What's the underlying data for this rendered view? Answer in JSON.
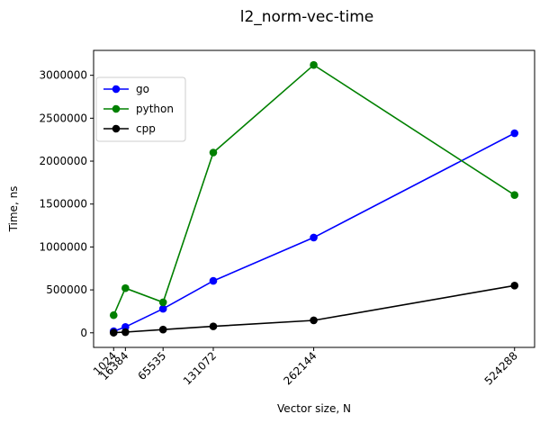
{
  "chart_data": {
    "type": "line",
    "title": "l2_norm-vec-time",
    "xlabel": "Vector size, N",
    "ylabel": "Time, ns",
    "x": [
      1024,
      16384,
      65535,
      131072,
      262144,
      524288
    ],
    "x_tick_labels": [
      "1024",
      "16384",
      "65535",
      "131072",
      "262144",
      "524288"
    ],
    "y_ticks": [
      0,
      500000,
      1000000,
      1500000,
      2000000,
      2500000,
      3000000
    ],
    "y_tick_labels": [
      "0",
      "500000",
      "1000000",
      "1500000",
      "2000000",
      "2500000",
      "3000000"
    ],
    "xlim": [
      -25138,
      550450
    ],
    "ylim": [
      -170000,
      3290000
    ],
    "grid": false,
    "legend_position": "upper-left",
    "series": [
      {
        "name": "go",
        "color": "#0000ff",
        "values": [
          18000,
          68000,
          280000,
          605000,
          1110000,
          2325000
        ]
      },
      {
        "name": "python",
        "color": "#008000",
        "values": [
          205000,
          520000,
          355000,
          2100000,
          3120000,
          1605000
        ]
      },
      {
        "name": "cpp",
        "color": "#000000",
        "values": [
          1500,
          8000,
          38000,
          75000,
          145000,
          550000
        ]
      }
    ]
  }
}
